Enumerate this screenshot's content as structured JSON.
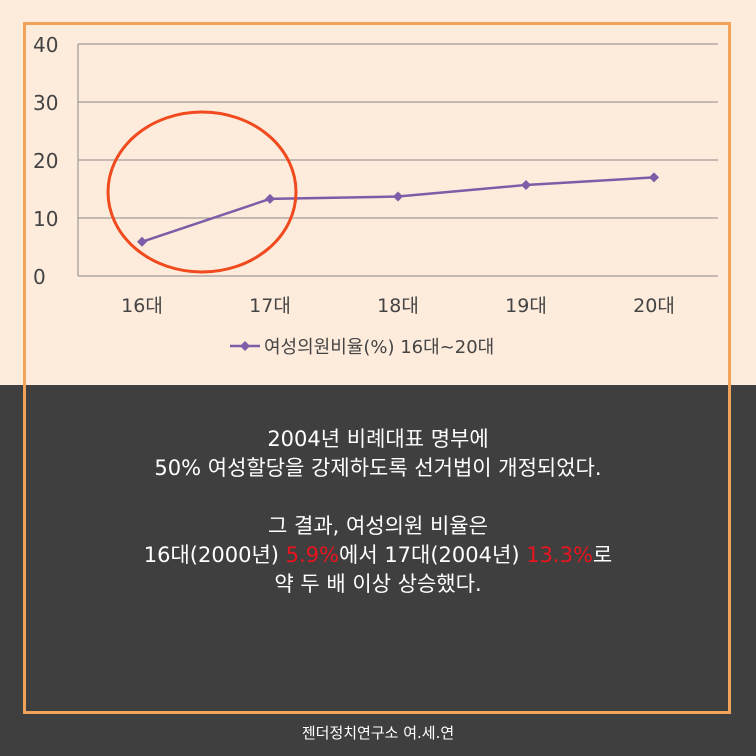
{
  "chart_data": {
    "type": "line",
    "categories": [
      "16대",
      "17대",
      "18대",
      "19대",
      "20대"
    ],
    "series": [
      {
        "name": "여성의원비율(%) 16대~20대",
        "values": [
          5.9,
          13.3,
          13.7,
          15.7,
          17.0
        ],
        "color": "#7b5ea7"
      }
    ],
    "ylim": [
      0,
      40
    ],
    "yticks": [
      0,
      10,
      20,
      30,
      40
    ],
    "grid": true,
    "legend": "bottom",
    "highlight_color": "#f04a1e"
  },
  "caption": {
    "line1": "2004년 비례대표 명부에",
    "line2": "50% 여성할당을 강제하도록 선거법이 개정되었다.",
    "line3": "그 결과, 여성의원 비율은",
    "line4_a": "16대(2000년) ",
    "line4_b": "5.9%",
    "line4_c": "에서 17대(2004년) ",
    "line4_d": "13.3%",
    "line4_e": "로",
    "line5": "약 두 배 이상 상승했다."
  },
  "footer": "젠더정치연구소 여.세.연"
}
